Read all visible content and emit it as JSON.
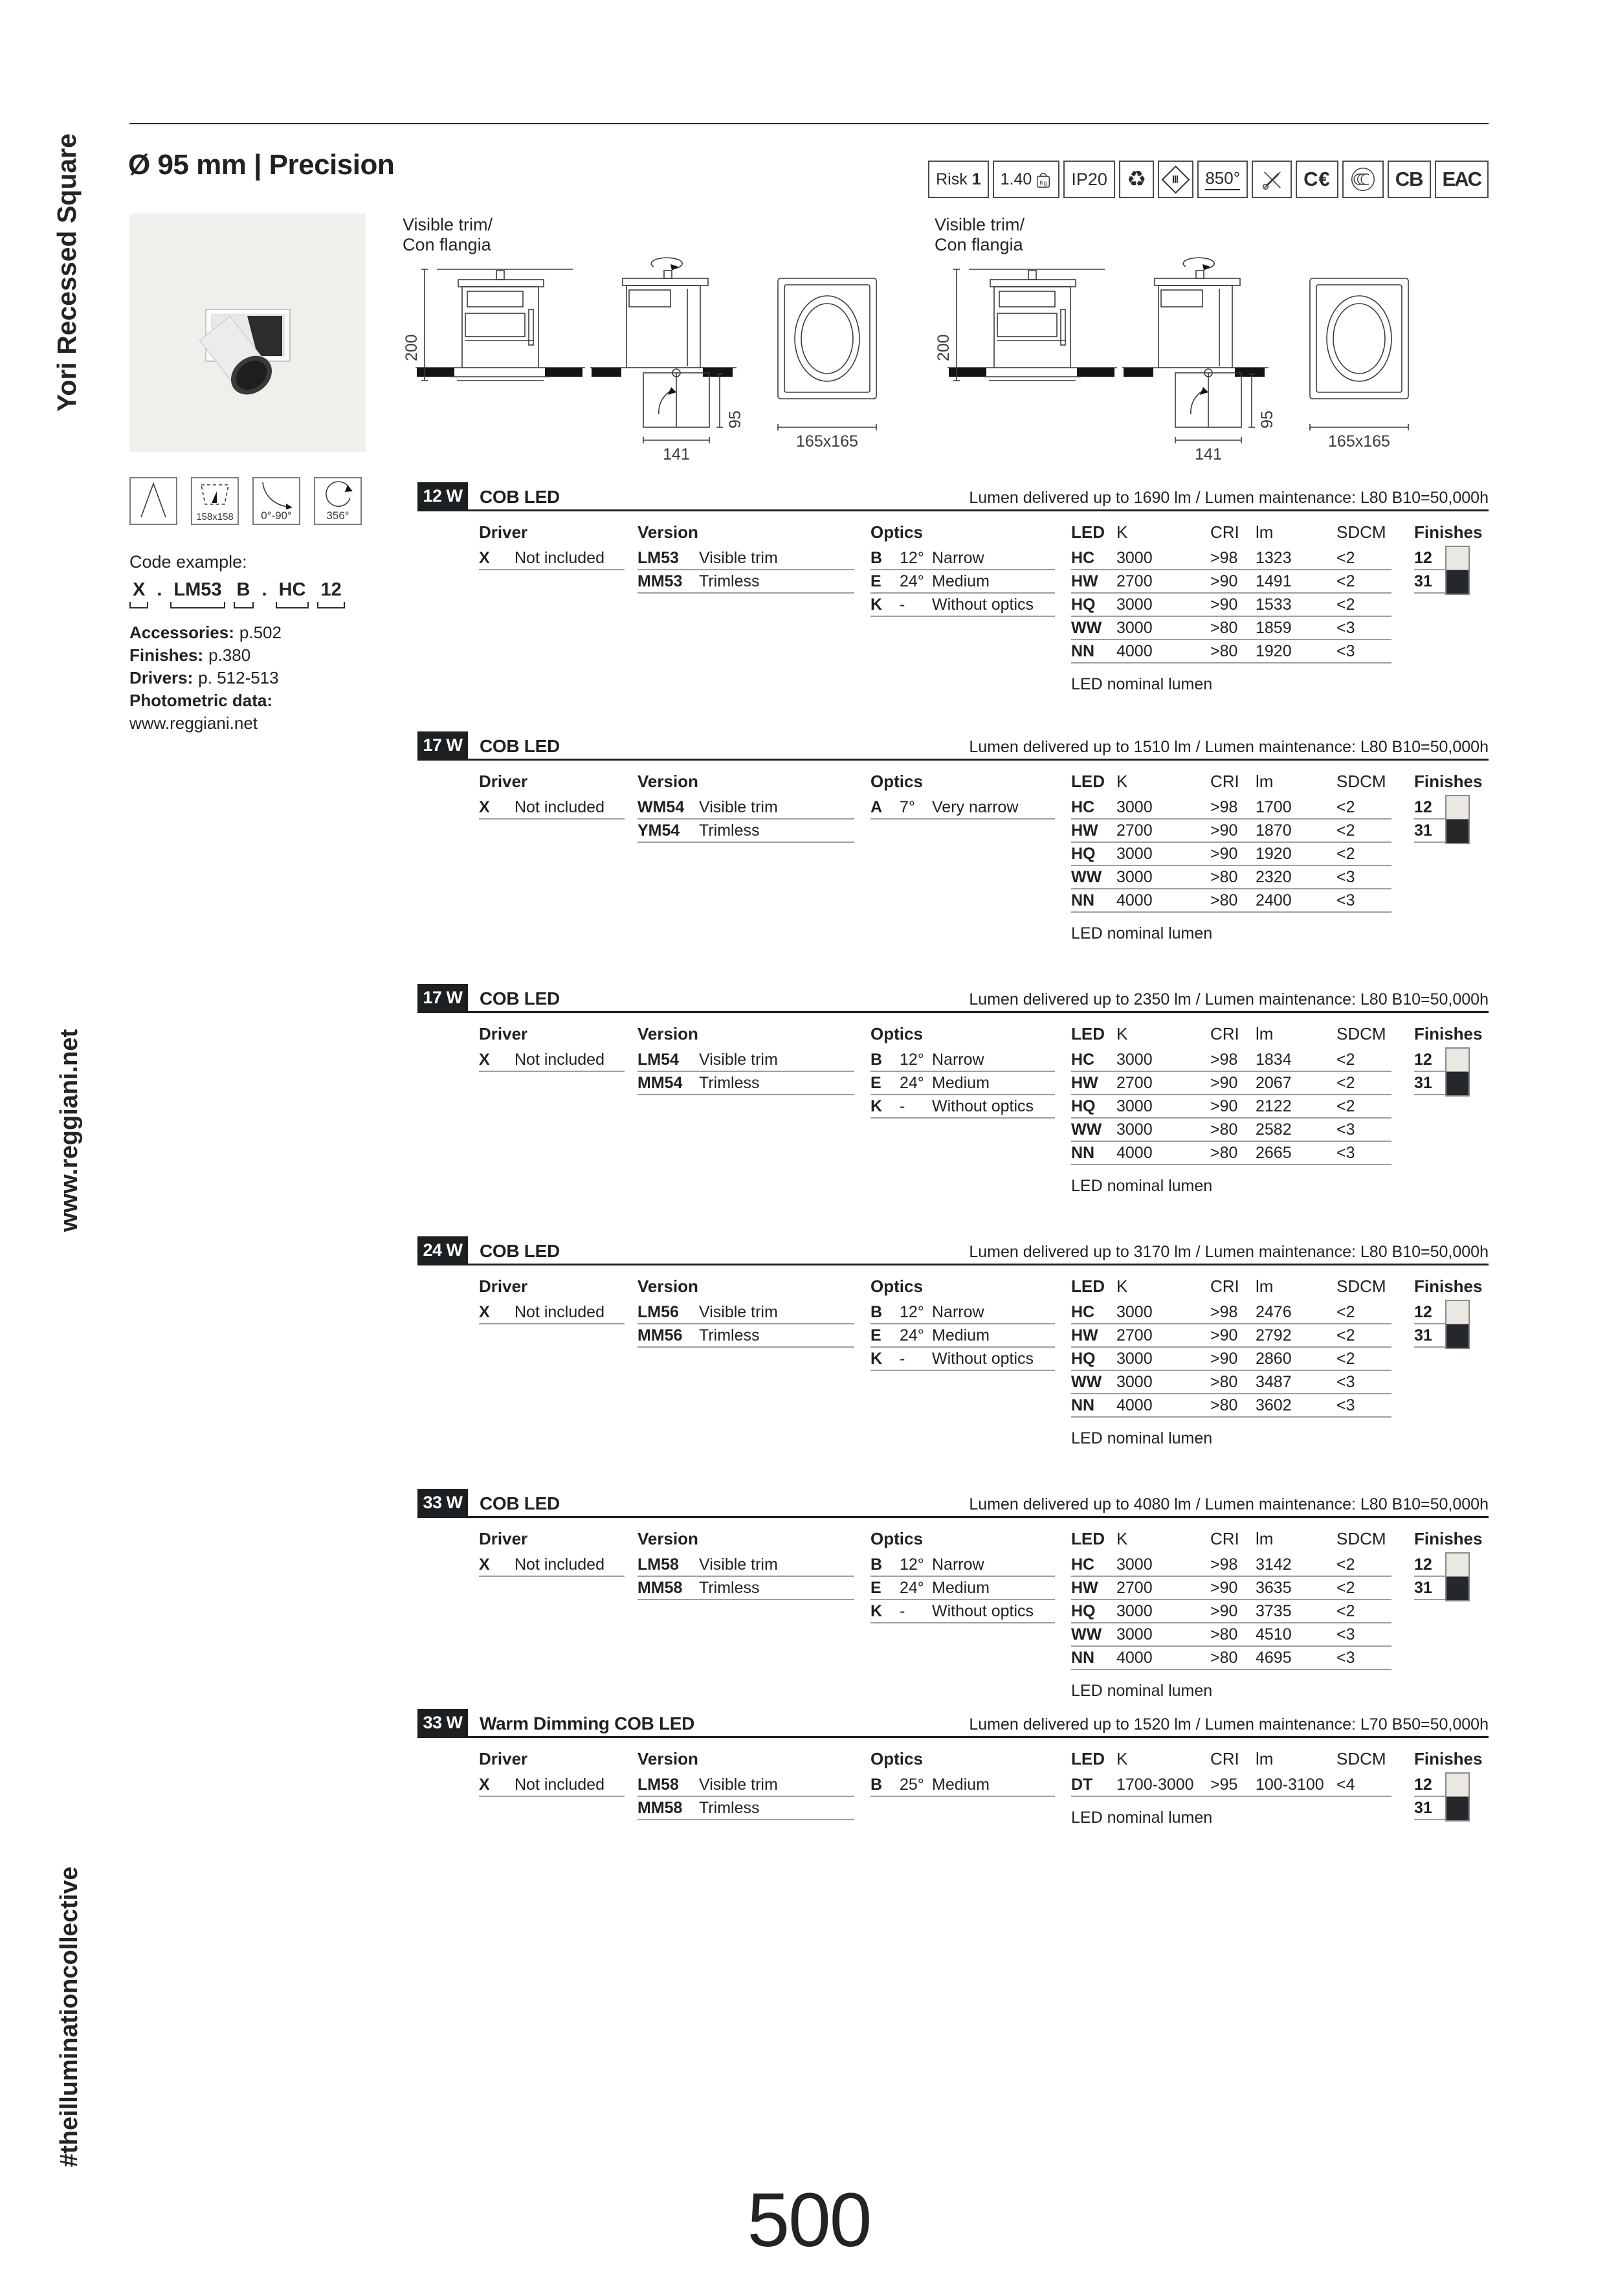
{
  "page": {
    "title": "Ø 95 mm | Precision",
    "page_number": "500",
    "side_top": "Yori Recessed Square",
    "side_middle": "www.reggiani.net",
    "side_bottom": "#theilluminationcollective"
  },
  "header_icons": [
    {
      "name": "risk-group",
      "label": "Risk",
      "value": "1"
    },
    {
      "name": "weight",
      "label": "1.40",
      "unit": "Kg"
    },
    {
      "name": "ip-rating",
      "label": "IP20"
    },
    {
      "name": "recyclable",
      "glyph": "♻"
    },
    {
      "name": "insulation-class-3",
      "glyph": "Ⅲ"
    },
    {
      "name": "glow-wire-850",
      "label": "850°"
    },
    {
      "name": "no-tools",
      "label": ""
    },
    {
      "name": "ce-mark",
      "label": "C€"
    },
    {
      "name": "ccc-mark",
      "label": ""
    },
    {
      "name": "cb-mark",
      "label": "CB"
    },
    {
      "name": "eac-mark",
      "label": "EAC"
    }
  ],
  "drawing": {
    "label_line1": "Visible trim/",
    "label_line2": "Con flangia",
    "dim_height": "200",
    "dim_depth": "95",
    "dim_width": "141",
    "dim_face": "165x165"
  },
  "feature_icons": [
    {
      "name": "narrow-beam",
      "label": ""
    },
    {
      "name": "ceiling-cutout",
      "label": "158x158"
    },
    {
      "name": "tilt-range",
      "label": "0°-90°"
    },
    {
      "name": "rotation-range",
      "label": "356°"
    }
  ],
  "code_example": {
    "heading": "Code example:",
    "c1": "X",
    "d1": ".",
    "c2": "LM53",
    "c3": "B",
    "d2": ".",
    "c4": "HC",
    "c5": "12"
  },
  "info": {
    "accessories_label": "Accessories:",
    "accessories_value": "p.502",
    "finishes_label": "Finishes:",
    "finishes_value": "p.380",
    "drivers_label": "Drivers:",
    "drivers_value": "p. 512-513",
    "photometric_label": "Photometric data:",
    "photometric_value": "www.reggiani.net"
  },
  "table_labels": {
    "driver": "Driver",
    "version": "Version",
    "optics": "Optics",
    "led": "LED",
    "k": "K",
    "cri": "CRI",
    "lm": "lm",
    "sdcm": "SDCM",
    "finishes": "Finishes",
    "nominal": "LED nominal lumen",
    "finish_12": "12",
    "finish_31": "31"
  },
  "finish_colors": {
    "f12": "#ebe8e1",
    "f31": "#24272b"
  },
  "tables": [
    {
      "badge": "12 W",
      "title": "COB LED",
      "lumen_note": "Lumen delivered up to 1690 lm / Lumen maintenance: L80 B10=50,000h",
      "driver": [
        {
          "code": "X",
          "name": "Not included"
        }
      ],
      "versions": [
        {
          "code": "LM53",
          "name": "Visible trim"
        },
        {
          "code": "MM53",
          "name": "Trimless"
        }
      ],
      "optics": [
        {
          "code": "B",
          "angle": "12°",
          "name": "Narrow"
        },
        {
          "code": "E",
          "angle": "24°",
          "name": "Medium"
        },
        {
          "code": "K",
          "angle": "-",
          "name": "Without optics"
        }
      ],
      "leds": [
        {
          "code": "HC",
          "k": "3000",
          "cri": ">98",
          "lm": "1323",
          "sdcm": "<2"
        },
        {
          "code": "HW",
          "k": "2700",
          "cri": ">90",
          "lm": "1491",
          "sdcm": "<2"
        },
        {
          "code": "HQ",
          "k": "3000",
          "cri": ">90",
          "lm": "1533",
          "sdcm": "<2"
        },
        {
          "code": "WW",
          "k": "3000",
          "cri": ">80",
          "lm": "1859",
          "sdcm": "<3"
        },
        {
          "code": "NN",
          "k": "4000",
          "cri": ">80",
          "lm": "1920",
          "sdcm": "<3"
        }
      ]
    },
    {
      "badge": "17 W",
      "title": "COB LED",
      "lumen_note": "Lumen delivered up to 1510 lm / Lumen maintenance: L80 B10=50,000h",
      "driver": [
        {
          "code": "X",
          "name": "Not included"
        }
      ],
      "versions": [
        {
          "code": "WM54",
          "name": "Visible trim"
        },
        {
          "code": "YM54",
          "name": "Trimless"
        }
      ],
      "optics": [
        {
          "code": "A",
          "angle": "7°",
          "name": "Very narrow"
        }
      ],
      "leds": [
        {
          "code": "HC",
          "k": "3000",
          "cri": ">98",
          "lm": "1700",
          "sdcm": "<2"
        },
        {
          "code": "HW",
          "k": "2700",
          "cri": ">90",
          "lm": "1870",
          "sdcm": "<2"
        },
        {
          "code": "HQ",
          "k": "3000",
          "cri": ">90",
          "lm": "1920",
          "sdcm": "<2"
        },
        {
          "code": "WW",
          "k": "3000",
          "cri": ">80",
          "lm": "2320",
          "sdcm": "<3"
        },
        {
          "code": "NN",
          "k": "4000",
          "cri": ">80",
          "lm": "2400",
          "sdcm": "<3"
        }
      ]
    },
    {
      "badge": "17 W",
      "title": "COB LED",
      "lumen_note": "Lumen delivered up to 2350 lm / Lumen maintenance: L80 B10=50,000h",
      "driver": [
        {
          "code": "X",
          "name": "Not included"
        }
      ],
      "versions": [
        {
          "code": "LM54",
          "name": "Visible trim"
        },
        {
          "code": "MM54",
          "name": "Trimless"
        }
      ],
      "optics": [
        {
          "code": "B",
          "angle": "12°",
          "name": "Narrow"
        },
        {
          "code": "E",
          "angle": "24°",
          "name": "Medium"
        },
        {
          "code": "K",
          "angle": "-",
          "name": "Without optics"
        }
      ],
      "leds": [
        {
          "code": "HC",
          "k": "3000",
          "cri": ">98",
          "lm": "1834",
          "sdcm": "<2"
        },
        {
          "code": "HW",
          "k": "2700",
          "cri": ">90",
          "lm": "2067",
          "sdcm": "<2"
        },
        {
          "code": "HQ",
          "k": "3000",
          "cri": ">90",
          "lm": "2122",
          "sdcm": "<2"
        },
        {
          "code": "WW",
          "k": "3000",
          "cri": ">80",
          "lm": "2582",
          "sdcm": "<3"
        },
        {
          "code": "NN",
          "k": "4000",
          "cri": ">80",
          "lm": "2665",
          "sdcm": "<3"
        }
      ]
    },
    {
      "badge": "24 W",
      "title": "COB LED",
      "lumen_note": "Lumen delivered up to 3170 lm / Lumen maintenance: L80 B10=50,000h",
      "driver": [
        {
          "code": "X",
          "name": "Not included"
        }
      ],
      "versions": [
        {
          "code": "LM56",
          "name": "Visible trim"
        },
        {
          "code": "MM56",
          "name": "Trimless"
        }
      ],
      "optics": [
        {
          "code": "B",
          "angle": "12°",
          "name": "Narrow"
        },
        {
          "code": "E",
          "angle": "24°",
          "name": "Medium"
        },
        {
          "code": "K",
          "angle": "-",
          "name": "Without optics"
        }
      ],
      "leds": [
        {
          "code": "HC",
          "k": "3000",
          "cri": ">98",
          "lm": "2476",
          "sdcm": "<2"
        },
        {
          "code": "HW",
          "k": "2700",
          "cri": ">90",
          "lm": "2792",
          "sdcm": "<2"
        },
        {
          "code": "HQ",
          "k": "3000",
          "cri": ">90",
          "lm": "2860",
          "sdcm": "<2"
        },
        {
          "code": "WW",
          "k": "3000",
          "cri": ">80",
          "lm": "3487",
          "sdcm": "<3"
        },
        {
          "code": "NN",
          "k": "4000",
          "cri": ">80",
          "lm": "3602",
          "sdcm": "<3"
        }
      ]
    },
    {
      "badge": "33 W",
      "title": "COB LED",
      "lumen_note": "Lumen delivered up to 4080 lm / Lumen maintenance: L80 B10=50,000h",
      "driver": [
        {
          "code": "X",
          "name": "Not included"
        }
      ],
      "versions": [
        {
          "code": "LM58",
          "name": "Visible trim"
        },
        {
          "code": "MM58",
          "name": "Trimless"
        }
      ],
      "optics": [
        {
          "code": "B",
          "angle": "12°",
          "name": "Narrow"
        },
        {
          "code": "E",
          "angle": "24°",
          "name": "Medium"
        },
        {
          "code": "K",
          "angle": "-",
          "name": "Without optics"
        }
      ],
      "leds": [
        {
          "code": "HC",
          "k": "3000",
          "cri": ">98",
          "lm": "3142",
          "sdcm": "<2"
        },
        {
          "code": "HW",
          "k": "2700",
          "cri": ">90",
          "lm": "3635",
          "sdcm": "<2"
        },
        {
          "code": "HQ",
          "k": "3000",
          "cri": ">90",
          "lm": "3735",
          "sdcm": "<2"
        },
        {
          "code": "WW",
          "k": "3000",
          "cri": ">80",
          "lm": "4510",
          "sdcm": "<3"
        },
        {
          "code": "NN",
          "k": "4000",
          "cri": ">80",
          "lm": "4695",
          "sdcm": "<3"
        }
      ]
    },
    {
      "badge": "33 W",
      "title": "Warm Dimming COB LED",
      "lumen_note": "Lumen delivered up to 1520 lm / Lumen maintenance: L70 B50=50,000h",
      "driver": [
        {
          "code": "X",
          "name": "Not included"
        }
      ],
      "versions": [
        {
          "code": "LM58",
          "name": "Visible trim"
        },
        {
          "code": "MM58",
          "name": "Trimless"
        }
      ],
      "optics": [
        {
          "code": "B",
          "angle": "25°",
          "name": "Medium"
        }
      ],
      "leds": [
        {
          "code": "DT",
          "k": "1700-3000",
          "cri": ">95",
          "lm": "100-3100",
          "sdcm": "<4"
        }
      ]
    }
  ]
}
